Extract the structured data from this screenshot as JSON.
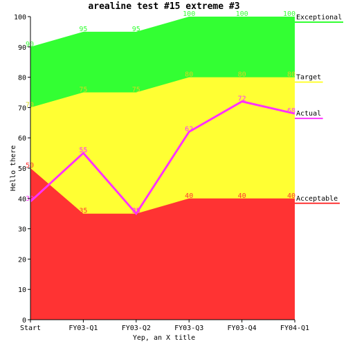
{
  "chart_data": {
    "type": "area",
    "title": "arealine test #15 extreme #3",
    "xlabel": "Yep, an X title",
    "ylabel": "Hello there",
    "ylim": [
      0,
      100
    ],
    "yticks": [
      "0",
      "10",
      "20",
      "30",
      "40",
      "50",
      "60",
      "70",
      "80",
      "90",
      "100"
    ],
    "grid": false,
    "legend_position": "right",
    "categories": [
      "Start",
      "FY03-Q1",
      "FY03-Q2",
      "FY03-Q3",
      "FY03-Q4",
      "FY04-Q1"
    ],
    "series": [
      {
        "name": "Exceptional",
        "kind": "area",
        "color": "#33ff33",
        "label_color": "#33ff33",
        "values": [
          90,
          95,
          95,
          100,
          100,
          100
        ]
      },
      {
        "name": "Target",
        "kind": "area",
        "color": "#ffff33",
        "label_color": "#d8d820",
        "values": [
          70,
          75,
          75,
          80,
          80,
          80
        ]
      },
      {
        "name": "Acceptable",
        "kind": "area",
        "color": "#ff3333",
        "label_color": "#ff3333",
        "values": [
          50,
          35,
          35,
          40,
          40,
          40
        ]
      },
      {
        "name": "Actual",
        "kind": "line",
        "color": "#ff33ff",
        "label_color": "#ff33ff",
        "values": [
          39,
          55,
          35,
          62,
          72,
          68
        ]
      }
    ]
  }
}
